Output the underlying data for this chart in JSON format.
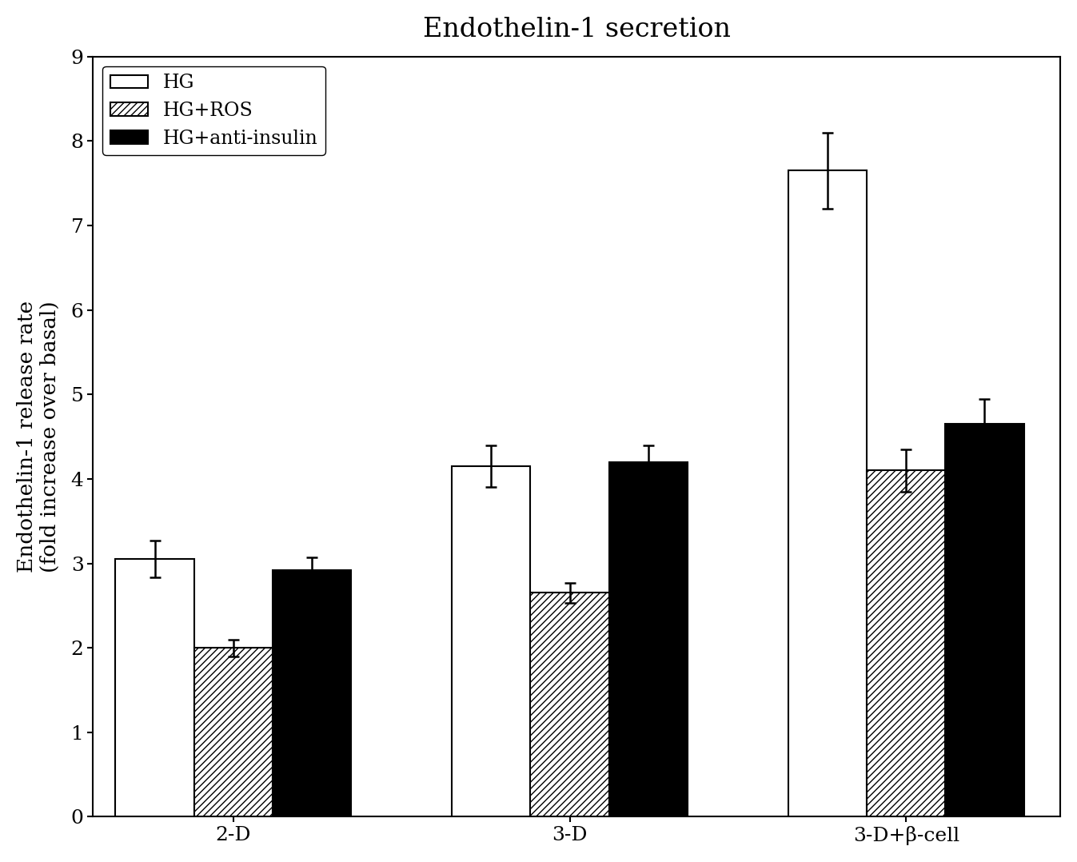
{
  "title": "Endothelin-1 secretion",
  "ylabel": "Endothelin-1 release rate\n(fold increase over basal)",
  "xlabel": "",
  "categories": [
    "2-D",
    "3-D",
    "3-D+β-cell"
  ],
  "series": [
    {
      "label": "HG",
      "values": [
        3.05,
        4.15,
        7.65
      ],
      "errors": [
        0.22,
        0.25,
        0.45
      ],
      "color": "white",
      "edgecolor": "black",
      "hatch": ""
    },
    {
      "label": "HG+ROS",
      "values": [
        2.0,
        2.65,
        4.1
      ],
      "errors": [
        0.1,
        0.12,
        0.25
      ],
      "color": "white",
      "edgecolor": "black",
      "hatch": "////"
    },
    {
      "label": "HG+anti-insulin",
      "values": [
        2.92,
        4.2,
        4.65
      ],
      "errors": [
        0.15,
        0.2,
        0.3
      ],
      "color": "black",
      "edgecolor": "black",
      "hatch": ""
    }
  ],
  "ylim": [
    0,
    9
  ],
  "yticks": [
    0,
    1,
    2,
    3,
    4,
    5,
    6,
    7,
    8,
    9
  ],
  "bar_width": 0.28,
  "group_positions": [
    1.0,
    2.2,
    3.4
  ],
  "title_fontsize": 24,
  "label_fontsize": 19,
  "tick_fontsize": 18,
  "legend_fontsize": 17,
  "background_color": "white",
  "figure_background": "white",
  "xlim": [
    0.5,
    3.95
  ]
}
